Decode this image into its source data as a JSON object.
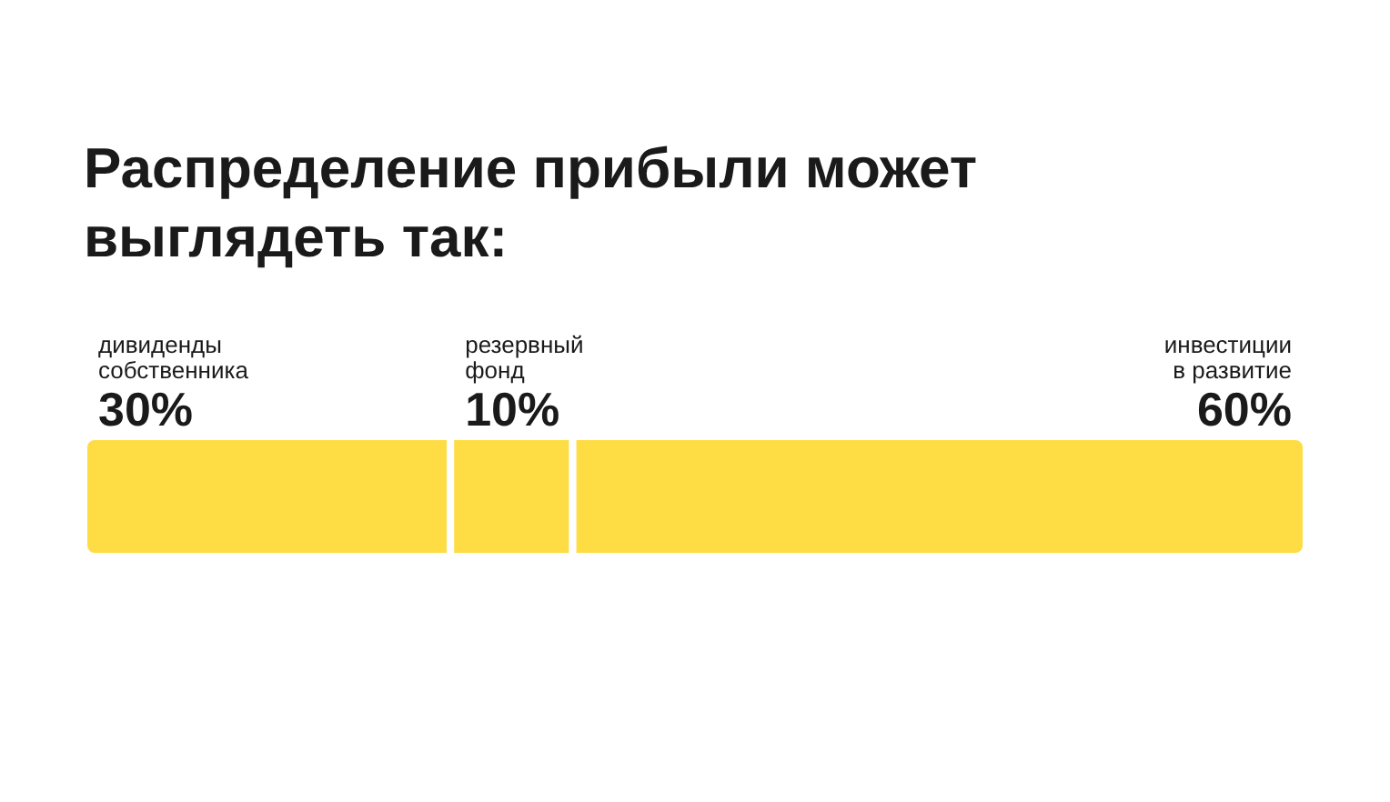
{
  "chart_data": {
    "type": "bar",
    "orientation": "horizontal",
    "stacked": true,
    "title": "Распределение прибыли может выглядеть так:",
    "categories": [
      null
    ],
    "series": [
      {
        "name": "дивиденды собственника",
        "color": "#fedd44",
        "values": [
          30
        ],
        "value_labels": [
          "30%"
        ]
      },
      {
        "name": "резервный фонд",
        "color": "#fedd44",
        "values": [
          10
        ],
        "value_labels": [
          "10%"
        ]
      },
      {
        "name": "инвестиции в развитие",
        "color": "#fedd44",
        "values": [
          60
        ],
        "value_labels": [
          "60%"
        ]
      }
    ],
    "legend": false
  }
}
